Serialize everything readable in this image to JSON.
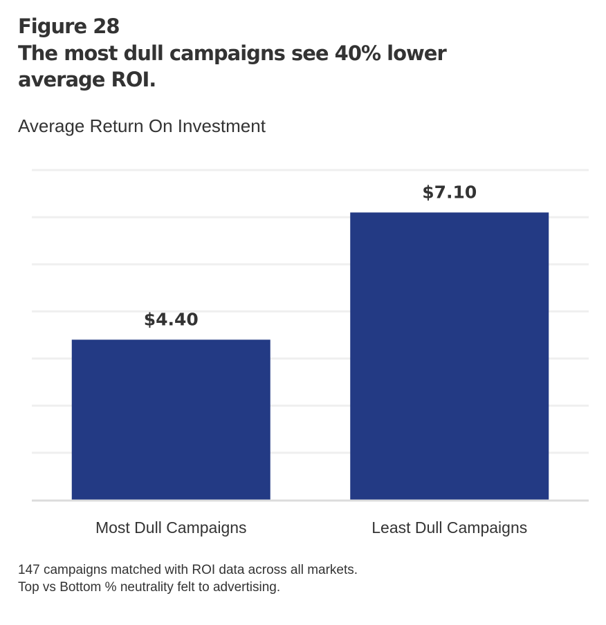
{
  "figure_label": "Figure 28",
  "title": "The most dull campaigns see 40% lower average ROI.",
  "subtitle": "Average Return On Investment",
  "footnote": {
    "line1": "147 campaigns matched with ROI data across all markets.",
    "line2": "Top vs Bottom % neutrality felt to advertising."
  },
  "colors": {
    "bar": "#233a84",
    "grid": "#efefef",
    "baseline": "#dcdcdc",
    "text": "#333333"
  },
  "chart_data": {
    "type": "bar",
    "title": "The most dull campaigns see 40% lower average ROI.",
    "subtitle": "Average Return On Investment",
    "categories": [
      "Most Dull Campaigns",
      "Least Dull Campaigns"
    ],
    "values": [
      4.4,
      7.1
    ],
    "data_labels": [
      "$4.40",
      "$7.10"
    ],
    "xlabel": "",
    "ylabel": "",
    "ylim": [
      1,
      8
    ],
    "grid": true,
    "grid_step": 1,
    "legend": "none"
  }
}
